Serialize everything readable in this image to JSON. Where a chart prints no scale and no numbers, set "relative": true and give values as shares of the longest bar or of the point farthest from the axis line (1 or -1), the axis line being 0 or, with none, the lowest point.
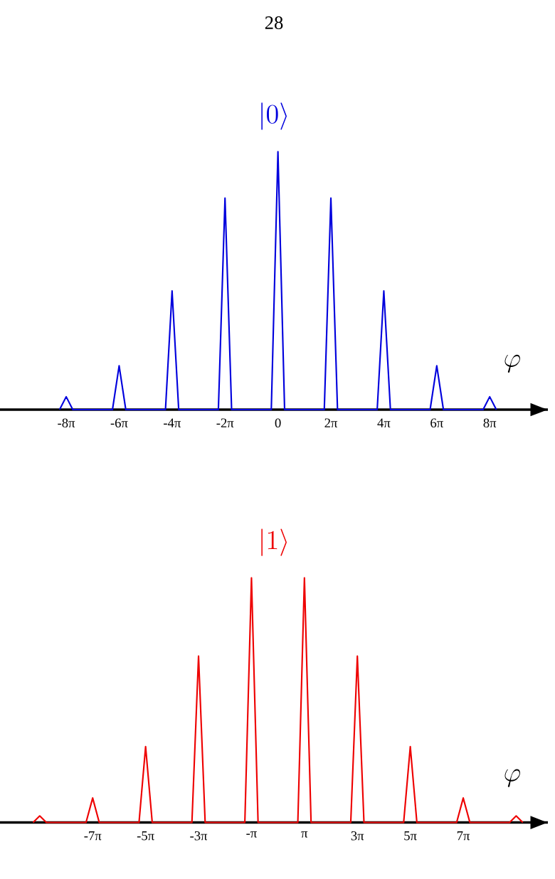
{
  "chart_data": [
    {
      "type": "line",
      "relative": true,
      "title": "|0\\rangle",
      "xlabel": "\\varphi",
      "annotations": [
        "28"
      ],
      "marker": "none",
      "xlim": [
        -32.99,
        32.04
      ],
      "xticks": [
        {
          "value": -25.133,
          "label": "-8π"
        },
        {
          "value": -18.85,
          "label": "-6π"
        },
        {
          "value": -12.566,
          "label": "-4π"
        },
        {
          "value": -6.283,
          "label": "-2π"
        },
        0,
        {
          "value": 6.283,
          "label": "2π"
        },
        {
          "value": 12.566,
          "label": "4π"
        },
        {
          "value": 18.85,
          "label": "6π"
        },
        {
          "value": 25.133,
          "label": "8π"
        }
      ],
      "series": [
        {
          "color": "#0000dd",
          "x": [
            -25.92,
            -25.133,
            -24.35,
            -19.64,
            -18.85,
            -18.06,
            -13.35,
            -12.566,
            -11.78,
            -7.07,
            -6.283,
            -5.5,
            -0.79,
            0,
            0.79,
            5.5,
            6.283,
            7.07,
            11.78,
            12.566,
            13.35,
            18.06,
            18.85,
            19.64,
            24.35,
            25.133,
            25.92
          ],
          "values": [
            0,
            0.05,
            0,
            0,
            0.17,
            0,
            0,
            0.46,
            0,
            0,
            0.82,
            0,
            0,
            1,
            0,
            0,
            0.82,
            0,
            0,
            0.46,
            0,
            0,
            0.17,
            0,
            0,
            0.05,
            0
          ]
        }
      ]
    },
    {
      "type": "line",
      "relative": true,
      "title": "|1\\rangle",
      "xlabel": "\\varphi",
      "marker": "none",
      "xlim": [
        -32.99,
        32.04
      ],
      "xticks": [
        {
          "value": -21.991,
          "label": "-7π"
        },
        {
          "value": -15.708,
          "label": "-5π"
        },
        {
          "value": -9.425,
          "label": "-3π"
        },
        {
          "value": -3.142,
          "label": "-π"
        },
        {
          "value": 3.142,
          "label": "π"
        },
        {
          "value": 9.425,
          "label": "3π"
        },
        {
          "value": 15.708,
          "label": "5π"
        },
        {
          "value": 21.991,
          "label": "7π"
        }
      ],
      "series": [
        {
          "color": "#ee0000",
          "x": [
            -29.06,
            -28.274,
            -27.49,
            -22.78,
            -21.991,
            -21.21,
            -16.49,
            -15.708,
            -14.92,
            -10.21,
            -9.425,
            -8.64,
            -3.93,
            -3.142,
            -2.36,
            2.36,
            3.142,
            3.93,
            8.64,
            9.425,
            10.21,
            14.92,
            15.708,
            16.49,
            21.21,
            21.991,
            22.78,
            27.49,
            28.274,
            29.06
          ],
          "values": [
            0,
            0.027,
            0,
            0,
            0.1,
            0,
            0,
            0.31,
            0,
            0,
            0.68,
            0,
            0,
            1,
            0,
            0,
            1,
            0,
            0,
            0.68,
            0,
            0,
            0.31,
            0,
            0,
            0.1,
            0,
            0,
            0.027,
            0
          ]
        }
      ]
    }
  ]
}
